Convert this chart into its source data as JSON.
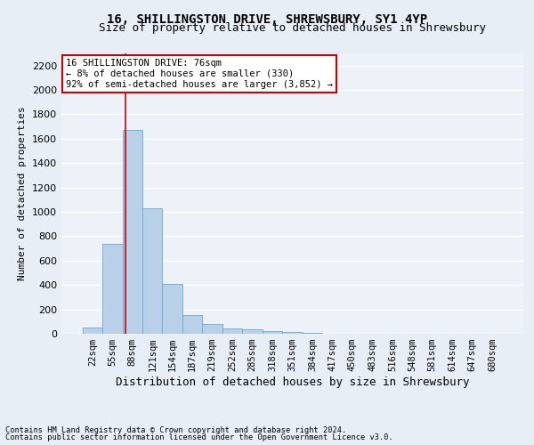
{
  "title": "16, SHILLINGSTON DRIVE, SHREWSBURY, SY1 4YP",
  "subtitle": "Size of property relative to detached houses in Shrewsbury",
  "xlabel": "Distribution of detached houses by size in Shrewsbury",
  "ylabel": "Number of detached properties",
  "bin_labels": [
    "22sqm",
    "55sqm",
    "88sqm",
    "121sqm",
    "154sqm",
    "187sqm",
    "219sqm",
    "252sqm",
    "285sqm",
    "318sqm",
    "351sqm",
    "384sqm",
    "417sqm",
    "450sqm",
    "483sqm",
    "516sqm",
    "548sqm",
    "581sqm",
    "614sqm",
    "647sqm",
    "680sqm"
  ],
  "bar_values": [
    50,
    740,
    1670,
    1030,
    410,
    155,
    80,
    45,
    40,
    25,
    15,
    10,
    0,
    0,
    0,
    0,
    0,
    0,
    0,
    0,
    0
  ],
  "bar_color": "#b8d0e8",
  "bar_edge_color": "#6aaad4",
  "bar_width": 1.0,
  "vline_x": 1.65,
  "vline_color": "#cc0000",
  "ylim": [
    0,
    2300
  ],
  "yticks": [
    0,
    200,
    400,
    600,
    800,
    1000,
    1200,
    1400,
    1600,
    1800,
    2000,
    2200
  ],
  "annotation_text": "16 SHILLINGSTON DRIVE: 76sqm\n← 8% of detached houses are smaller (330)\n92% of semi-detached houses are larger (3,852) →",
  "annotation_box_color": "#ffffff",
  "annotation_border_color": "#cc0000",
  "footer1": "Contains HM Land Registry data © Crown copyright and database right 2024.",
  "footer2": "Contains public sector information licensed under the Open Government Licence v3.0.",
  "bg_color": "#e8eef5",
  "plot_bg": "#edf2f8",
  "grid_color": "#ffffff",
  "title_fontsize": 10,
  "subtitle_fontsize": 9,
  "ylabel_fontsize": 8,
  "xlabel_fontsize": 9,
  "tick_fontsize": 7.5,
  "footer_fontsize": 6.2
}
